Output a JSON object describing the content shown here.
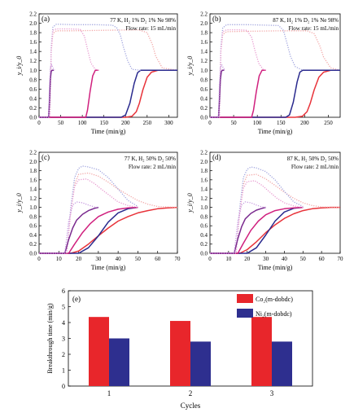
{
  "chart_data": [
    {
      "panel": "(a)",
      "type": "line",
      "annotation": [
        "77 K, H₂ 1% D₂ 1% Ne 98%",
        "Flow rate: 15 mL/min"
      ],
      "xlabel": "Time (min/g)",
      "ylabel": "y_i/y_0",
      "xlim": [
        0,
        320
      ],
      "ylim": [
        0,
        2.2
      ],
      "xticks": [
        0,
        50,
        100,
        150,
        200,
        250,
        300
      ],
      "yticks": [
        0.0,
        0.2,
        0.4,
        0.6,
        0.8,
        1.0,
        1.2,
        1.4,
        1.6,
        1.8,
        2.0,
        2.2
      ],
      "series": [
        {
          "color": "#e8333a",
          "style": "solid",
          "x": [
            0,
            200,
            215,
            225,
            232,
            240,
            250,
            260,
            275,
            290,
            320
          ],
          "y": [
            0,
            0,
            0.02,
            0.12,
            0.3,
            0.58,
            0.85,
            0.96,
            1.0,
            1.0,
            1.0
          ]
        },
        {
          "color": "#f2a6a6",
          "style": "dotted",
          "x": [
            0,
            25,
            28,
            32,
            40,
            80,
            150,
            230,
            250,
            262,
            270,
            285,
            320
          ],
          "y": [
            0,
            0,
            1.4,
            1.78,
            1.84,
            1.84,
            1.85,
            1.86,
            1.8,
            1.55,
            1.3,
            1.05,
            1.0
          ]
        },
        {
          "color": "#2a2a8e",
          "style": "solid",
          "x": [
            0,
            190,
            200,
            210,
            220,
            228,
            235,
            320
          ],
          "y": [
            0,
            0,
            0.05,
            0.3,
            0.72,
            0.95,
            1.0,
            1.0
          ]
        },
        {
          "color": "#a0a4de",
          "style": "dotted",
          "x": [
            0,
            25,
            28,
            32,
            40,
            80,
            130,
            170,
            180,
            188,
            195,
            205,
            215,
            235
          ],
          "y": [
            0,
            0,
            1.5,
            1.92,
            1.98,
            1.97,
            1.97,
            1.96,
            1.9,
            1.75,
            1.5,
            1.2,
            1.02,
            1.0
          ]
        },
        {
          "color": "#d0207e",
          "style": "solid",
          "x": [
            0,
            108,
            112,
            118,
            124,
            130,
            138
          ],
          "y": [
            0,
            0,
            0.15,
            0.55,
            0.88,
            1.0,
            1.0
          ]
        },
        {
          "color": "#e89ad0",
          "style": "dotted",
          "x": [
            0,
            25,
            28,
            32,
            40,
            70,
            95,
            105,
            112,
            120,
            130,
            138
          ],
          "y": [
            0,
            0,
            1.4,
            1.85,
            1.88,
            1.88,
            1.87,
            1.72,
            1.45,
            1.15,
            1.02,
            1.0
          ]
        },
        {
          "color": "#7a2a8e",
          "style": "solid",
          "x": [
            0,
            22,
            24,
            26,
            28,
            30,
            34
          ],
          "y": [
            0,
            0,
            0.35,
            0.8,
            0.97,
            1.0,
            1.0
          ]
        },
        {
          "color": "#c79adf",
          "style": "dotted",
          "x": [
            0,
            22,
            24,
            26,
            29,
            32,
            36
          ],
          "y": [
            0,
            0,
            0.7,
            1.05,
            1.12,
            1.05,
            1.0
          ]
        }
      ]
    },
    {
      "panel": "(b)",
      "type": "line",
      "annotation": [
        "87 K, H₂ 1% D₂ 1% Ne 98%",
        "Flow rate: 15 mL/min"
      ],
      "xlabel": "Time (min/g)",
      "ylabel": "y_i/y_0",
      "xlim": [
        0,
        275
      ],
      "ylim": [
        0,
        2.2
      ],
      "xticks": [
        0,
        50,
        100,
        150,
        200,
        250
      ],
      "yticks": [
        0.0,
        0.2,
        0.4,
        0.6,
        0.8,
        1.0,
        1.2,
        1.4,
        1.6,
        1.8,
        2.0,
        2.2
      ],
      "series": [
        {
          "color": "#e8333a",
          "style": "solid",
          "x": [
            0,
            180,
            195,
            205,
            212,
            220,
            230,
            240,
            255,
            275
          ],
          "y": [
            0,
            0,
            0.02,
            0.12,
            0.3,
            0.58,
            0.85,
            0.96,
            1.0,
            1.0
          ]
        },
        {
          "color": "#f2a6a6",
          "style": "dotted",
          "x": [
            0,
            20,
            23,
            27,
            35,
            80,
            150,
            205,
            220,
            232,
            240,
            255,
            275
          ],
          "y": [
            0,
            0,
            1.4,
            1.76,
            1.82,
            1.83,
            1.84,
            1.84,
            1.78,
            1.52,
            1.28,
            1.05,
            1.0
          ]
        },
        {
          "color": "#2a2a8e",
          "style": "solid",
          "x": [
            0,
            160,
            168,
            176,
            184,
            190,
            196,
            275
          ],
          "y": [
            0,
            0,
            0.05,
            0.32,
            0.75,
            0.96,
            1.0,
            1.0
          ]
        },
        {
          "color": "#a0a4de",
          "style": "dotted",
          "x": [
            0,
            20,
            23,
            27,
            35,
            80,
            120,
            145,
            155,
            162,
            170,
            180,
            196
          ],
          "y": [
            0,
            0,
            1.5,
            1.9,
            1.97,
            1.97,
            1.96,
            1.95,
            1.85,
            1.6,
            1.3,
            1.08,
            1.0
          ]
        },
        {
          "color": "#d0207e",
          "style": "solid",
          "x": [
            0,
            88,
            92,
            98,
            104,
            110,
            118
          ],
          "y": [
            0,
            0,
            0.15,
            0.55,
            0.88,
            1.0,
            1.0
          ]
        },
        {
          "color": "#e89ad0",
          "style": "dotted",
          "x": [
            0,
            20,
            23,
            27,
            35,
            60,
            78,
            88,
            95,
            103,
            112,
            120
          ],
          "y": [
            0,
            0,
            1.4,
            1.82,
            1.86,
            1.86,
            1.85,
            1.7,
            1.42,
            1.15,
            1.02,
            1.0
          ]
        },
        {
          "color": "#7a2a8e",
          "style": "solid",
          "x": [
            0,
            18,
            20,
            22,
            24,
            26,
            30
          ],
          "y": [
            0,
            0,
            0.35,
            0.8,
            0.97,
            1.0,
            1.0
          ]
        },
        {
          "color": "#c79adf",
          "style": "dotted",
          "x": [
            0,
            18,
            20,
            22,
            25,
            28,
            32
          ],
          "y": [
            0,
            0,
            0.7,
            1.05,
            1.12,
            1.05,
            1.0
          ]
        }
      ]
    },
    {
      "panel": "(c)",
      "type": "line",
      "annotation": [
        "77 K, H₂ 50% D₂ 50%",
        "Flow rate: 2 mL/min"
      ],
      "xlabel": "Time (min/g)",
      "ylabel": "y_i/y_0",
      "xlim": [
        0,
        70
      ],
      "ylim": [
        0,
        2.2
      ],
      "xticks": [
        0,
        10,
        20,
        30,
        40,
        50,
        60,
        70
      ],
      "yticks": [
        0.0,
        0.2,
        0.4,
        0.6,
        0.8,
        1.0,
        1.2,
        1.4,
        1.6,
        1.8,
        2.0,
        2.2
      ],
      "series": [
        {
          "color": "#e8333a",
          "style": "solid",
          "x": [
            0,
            16,
            20,
            25,
            30,
            35,
            40,
            45,
            50,
            55,
            60,
            65,
            70
          ],
          "y": [
            0,
            0,
            0.05,
            0.2,
            0.38,
            0.55,
            0.7,
            0.8,
            0.88,
            0.93,
            0.97,
            0.99,
            1.0
          ]
        },
        {
          "color": "#f2a6a6",
          "style": "dotted",
          "x": [
            0,
            14,
            16,
            18,
            20,
            25,
            30,
            35,
            40,
            45,
            50,
            55,
            60,
            70
          ],
          "y": [
            0,
            0,
            0.9,
            1.5,
            1.72,
            1.75,
            1.68,
            1.55,
            1.4,
            1.27,
            1.15,
            1.07,
            1.02,
            1.0
          ]
        },
        {
          "color": "#2a2a8e",
          "style": "solid",
          "x": [
            0,
            20,
            25,
            30,
            35,
            40,
            45,
            50
          ],
          "y": [
            0,
            0,
            0.12,
            0.38,
            0.68,
            0.88,
            0.97,
            1.0
          ]
        },
        {
          "color": "#a0a4de",
          "style": "dotted",
          "x": [
            0,
            14,
            16,
            18,
            20,
            22,
            25,
            30,
            35,
            40,
            45,
            50
          ],
          "y": [
            0,
            0,
            1.0,
            1.65,
            1.85,
            1.9,
            1.88,
            1.82,
            1.65,
            1.4,
            1.15,
            1.02
          ]
        },
        {
          "color": "#d0207e",
          "style": "solid",
          "x": [
            0,
            15,
            18,
            22,
            26,
            30,
            35,
            40,
            45,
            50
          ],
          "y": [
            0,
            0,
            0.2,
            0.45,
            0.65,
            0.8,
            0.9,
            0.96,
            0.99,
            1.0
          ]
        },
        {
          "color": "#e89ad0",
          "style": "dotted",
          "x": [
            0,
            14,
            16,
            18,
            20,
            24,
            28,
            32,
            36,
            40,
            45,
            50
          ],
          "y": [
            0,
            0,
            0.9,
            1.45,
            1.6,
            1.62,
            1.52,
            1.38,
            1.25,
            1.12,
            1.04,
            1.0
          ]
        },
        {
          "color": "#7a2a8e",
          "style": "solid",
          "x": [
            0,
            13,
            15,
            17,
            19,
            22,
            25,
            28,
            30
          ],
          "y": [
            0,
            0,
            0.3,
            0.55,
            0.72,
            0.85,
            0.93,
            0.98,
            1.0
          ]
        },
        {
          "color": "#c79adf",
          "style": "dotted",
          "x": [
            0,
            13,
            15,
            17,
            19,
            22,
            25,
            28,
            30
          ],
          "y": [
            0,
            0,
            0.7,
            1.05,
            1.12,
            1.1,
            1.05,
            1.01,
            1.0
          ]
        }
      ]
    },
    {
      "panel": "(d)",
      "type": "line",
      "annotation": [
        "87 K, H₂ 50% D₂ 50%",
        "Flow rate: 2 mL/min"
      ],
      "xlabel": "Time (min/g)",
      "ylabel": "y_i/y_0",
      "xlim": [
        0,
        70
      ],
      "ylim": [
        0,
        2.2
      ],
      "xticks": [
        0,
        10,
        20,
        30,
        40,
        50,
        60,
        70
      ],
      "yticks": [
        0.0,
        0.2,
        0.4,
        0.6,
        0.8,
        1.0,
        1.2,
        1.4,
        1.6,
        1.8,
        2.0,
        2.2
      ],
      "series": [
        {
          "color": "#e8333a",
          "style": "solid",
          "x": [
            0,
            16,
            20,
            25,
            30,
            35,
            40,
            45,
            50,
            55,
            60,
            65,
            70
          ],
          "y": [
            0,
            0,
            0.08,
            0.25,
            0.45,
            0.62,
            0.76,
            0.86,
            0.93,
            0.97,
            0.99,
            1.0,
            1.0
          ]
        },
        {
          "color": "#f2a6a6",
          "style": "dotted",
          "x": [
            0,
            14,
            16,
            18,
            20,
            25,
            30,
            35,
            40,
            45,
            50,
            55,
            60,
            70
          ],
          "y": [
            0,
            0,
            0.9,
            1.5,
            1.7,
            1.72,
            1.62,
            1.48,
            1.33,
            1.2,
            1.1,
            1.04,
            1.01,
            1.0
          ]
        },
        {
          "color": "#2a2a8e",
          "style": "solid",
          "x": [
            0,
            20,
            25,
            30,
            35,
            40,
            45,
            50
          ],
          "y": [
            0,
            0,
            0.12,
            0.4,
            0.7,
            0.9,
            0.98,
            1.0
          ]
        },
        {
          "color": "#a0a4de",
          "style": "dotted",
          "x": [
            0,
            14,
            16,
            18,
            20,
            22,
            25,
            30,
            35,
            40,
            45,
            50
          ],
          "y": [
            0,
            0,
            1.0,
            1.65,
            1.83,
            1.88,
            1.86,
            1.78,
            1.6,
            1.35,
            1.12,
            1.02
          ]
        },
        {
          "color": "#d0207e",
          "style": "solid",
          "x": [
            0,
            15,
            18,
            22,
            26,
            30,
            35,
            40,
            45,
            50
          ],
          "y": [
            0,
            0,
            0.22,
            0.5,
            0.7,
            0.84,
            0.93,
            0.97,
            0.99,
            1.0
          ]
        },
        {
          "color": "#e89ad0",
          "style": "dotted",
          "x": [
            0,
            14,
            16,
            18,
            20,
            24,
            28,
            32,
            36,
            40,
            45,
            50
          ],
          "y": [
            0,
            0,
            0.9,
            1.42,
            1.56,
            1.58,
            1.48,
            1.34,
            1.2,
            1.1,
            1.03,
            1.0
          ]
        },
        {
          "color": "#7a2a8e",
          "style": "solid",
          "x": [
            0,
            13,
            15,
            17,
            19,
            22,
            25,
            28,
            30
          ],
          "y": [
            0,
            0,
            0.32,
            0.58,
            0.75,
            0.87,
            0.94,
            0.98,
            1.0
          ]
        },
        {
          "color": "#c79adf",
          "style": "dotted",
          "x": [
            0,
            13,
            15,
            17,
            19,
            22,
            25,
            28,
            30
          ],
          "y": [
            0,
            0,
            0.7,
            1.05,
            1.12,
            1.1,
            1.05,
            1.01,
            1.0
          ]
        }
      ]
    },
    {
      "panel": "(e)",
      "type": "bar",
      "xlabel": "Cycles",
      "ylabel": "Breakthrough time (min/g)",
      "categories": [
        "1",
        "2",
        "3"
      ],
      "ylim": [
        0,
        6
      ],
      "yticks": [
        0,
        1,
        2,
        3,
        4,
        5,
        6
      ],
      "legend_position": "top-right",
      "series": [
        {
          "name": "Co₂(m-dobdc)",
          "color": "#e8262b",
          "values": [
            4.35,
            4.1,
            4.35
          ]
        },
        {
          "name": "Ni₂(m-dobdc)",
          "color": "#2e2f8f",
          "values": [
            3.0,
            2.8,
            2.8
          ]
        }
      ]
    }
  ]
}
